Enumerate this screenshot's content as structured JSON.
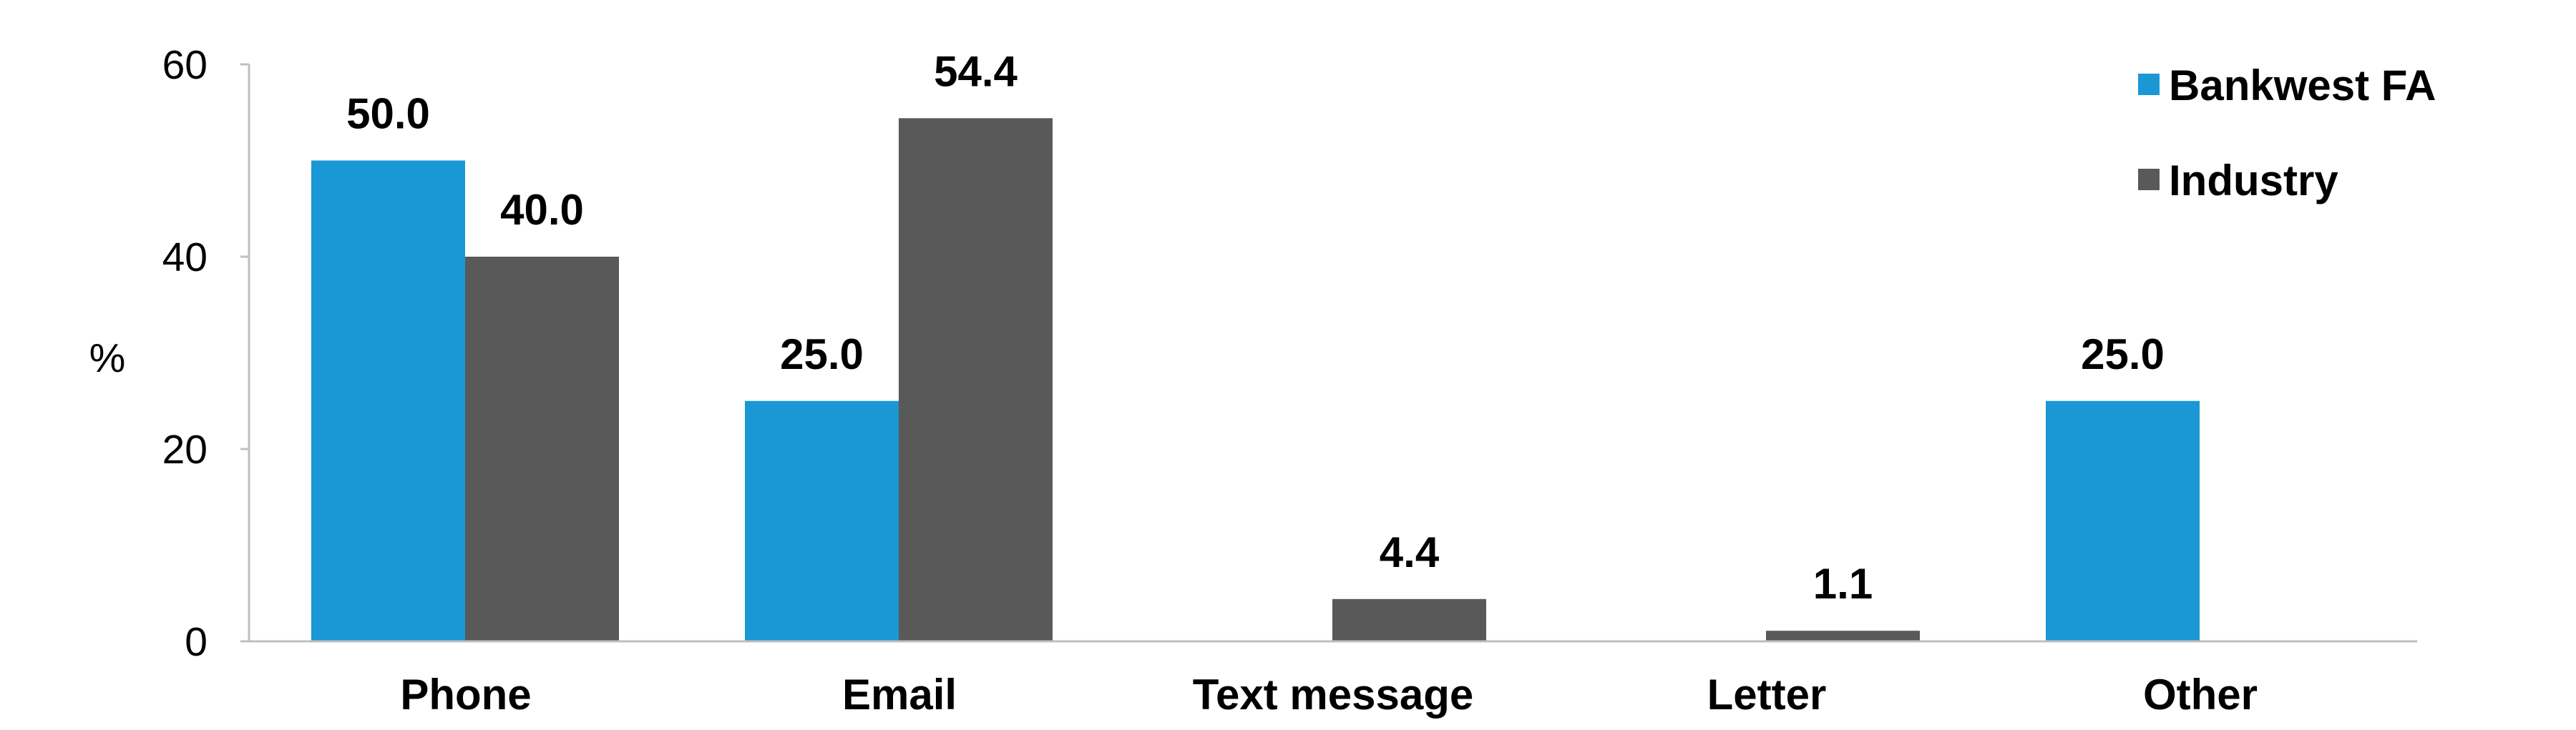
{
  "chart_data": {
    "type": "bar",
    "title": "",
    "xlabel": "",
    "ylabel": "%",
    "ylim": [
      0,
      60
    ],
    "yticks": [
      0,
      20,
      40,
      60
    ],
    "categories": [
      "Phone",
      "Email",
      "Text message",
      "Letter",
      "Other"
    ],
    "series": [
      {
        "name": "Bankwest FA",
        "color": "#1a98d5",
        "values": [
          50.0,
          25.0,
          null,
          null,
          25.0
        ],
        "labels": [
          "50.0",
          "25.0",
          "",
          "",
          "25.0"
        ]
      },
      {
        "name": "Industry",
        "color": "#595959",
        "values": [
          40.0,
          54.4,
          4.4,
          1.1,
          null
        ],
        "labels": [
          "40.0",
          "54.4",
          "4.4",
          "1.1",
          ""
        ]
      }
    ],
    "grid": false,
    "legend_position": "top-right",
    "axis_color": "#bfbfbf"
  }
}
